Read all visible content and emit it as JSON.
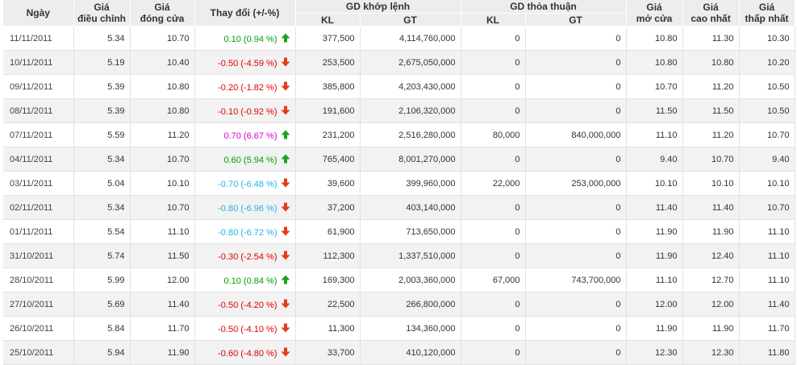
{
  "colors": {
    "up": "#00a000",
    "down": "#e00000",
    "ceiling": "#d600d6",
    "floor": "#22b4e8",
    "header_bg": "#ededed",
    "alt_row_bg": "#f2f2f2"
  },
  "headers": {
    "date": "Ngày",
    "adj_price": [
      "Giá",
      "điều chỉnh"
    ],
    "close_price": [
      "Giá",
      "đóng cửa"
    ],
    "change": "Thay đổi (+/-%)",
    "matched": "GD khớp lệnh",
    "negotiated": "GD thỏa thuận",
    "vol": "KL",
    "val": "GT",
    "open_price": [
      "Giá",
      "mở cửa"
    ],
    "high_price": [
      "Giá",
      "cao nhất"
    ],
    "low_price": [
      "Giá",
      "thấp nhất"
    ]
  },
  "rows": [
    {
      "date": "11/11/2011",
      "adj": "5.34",
      "close": "10.70",
      "change": "0.10 (0.94 %)",
      "dir": "up",
      "tone": "up",
      "m_kl": "377,500",
      "m_gt": "4,114,760,000",
      "n_kl": "0",
      "n_gt": "0",
      "open": "10.80",
      "high": "11.30",
      "low": "10.30"
    },
    {
      "date": "10/11/2011",
      "adj": "5.19",
      "close": "10.40",
      "change": "-0.50 (-4.59 %)",
      "dir": "down",
      "tone": "down",
      "m_kl": "253,500",
      "m_gt": "2,675,050,000",
      "n_kl": "0",
      "n_gt": "0",
      "open": "10.80",
      "high": "10.80",
      "low": "10.20"
    },
    {
      "date": "09/11/2011",
      "adj": "5.39",
      "close": "10.80",
      "change": "-0.20 (-1.82 %)",
      "dir": "down",
      "tone": "down",
      "m_kl": "385,800",
      "m_gt": "4,203,430,000",
      "n_kl": "0",
      "n_gt": "0",
      "open": "10.70",
      "high": "11.20",
      "low": "10.50"
    },
    {
      "date": "08/11/2011",
      "adj": "5.39",
      "close": "10.80",
      "change": "-0.10 (-0.92 %)",
      "dir": "down",
      "tone": "down",
      "m_kl": "191,600",
      "m_gt": "2,106,320,000",
      "n_kl": "0",
      "n_gt": "0",
      "open": "11.50",
      "high": "11.50",
      "low": "10.50"
    },
    {
      "date": "07/11/2011",
      "adj": "5.59",
      "close": "11.20",
      "change": "0.70 (6.67 %)",
      "dir": "up",
      "tone": "ceil",
      "m_kl": "231,200",
      "m_gt": "2,516,280,000",
      "n_kl": "80,000",
      "n_gt": "840,000,000",
      "open": "11.10",
      "high": "11.20",
      "low": "10.70"
    },
    {
      "date": "04/11/2011",
      "adj": "5.34",
      "close": "10.70",
      "change": "0.60 (5.94 %)",
      "dir": "up",
      "tone": "up",
      "m_kl": "765,400",
      "m_gt": "8,001,270,000",
      "n_kl": "0",
      "n_gt": "0",
      "open": "9.40",
      "high": "10.70",
      "low": "9.40"
    },
    {
      "date": "03/11/2011",
      "adj": "5.04",
      "close": "10.10",
      "change": "-0.70 (-6.48 %)",
      "dir": "down",
      "tone": "floor",
      "m_kl": "39,600",
      "m_gt": "399,960,000",
      "n_kl": "22,000",
      "n_gt": "253,000,000",
      "open": "10.10",
      "high": "10.10",
      "low": "10.10"
    },
    {
      "date": "02/11/2011",
      "adj": "5.34",
      "close": "10.70",
      "change": "-0.80 (-6.96 %)",
      "dir": "down",
      "tone": "floor",
      "m_kl": "37,200",
      "m_gt": "403,140,000",
      "n_kl": "0",
      "n_gt": "0",
      "open": "11.40",
      "high": "11.40",
      "low": "10.70"
    },
    {
      "date": "01/11/2011",
      "adj": "5.54",
      "close": "11.10",
      "change": "-0.80 (-6.72 %)",
      "dir": "down",
      "tone": "floor",
      "m_kl": "61,900",
      "m_gt": "713,650,000",
      "n_kl": "0",
      "n_gt": "0",
      "open": "11.90",
      "high": "11.90",
      "low": "11.10"
    },
    {
      "date": "31/10/2011",
      "adj": "5.74",
      "close": "11.50",
      "change": "-0.30 (-2.54 %)",
      "dir": "down",
      "tone": "down",
      "m_kl": "112,300",
      "m_gt": "1,337,510,000",
      "n_kl": "0",
      "n_gt": "0",
      "open": "11.90",
      "high": "12.40",
      "low": "11.10"
    },
    {
      "date": "28/10/2011",
      "adj": "5.99",
      "close": "12.00",
      "change": "0.10 (0.84 %)",
      "dir": "up",
      "tone": "up",
      "m_kl": "169,300",
      "m_gt": "2,003,360,000",
      "n_kl": "67,000",
      "n_gt": "743,700,000",
      "open": "11.10",
      "high": "12.70",
      "low": "11.10"
    },
    {
      "date": "27/10/2011",
      "adj": "5.69",
      "close": "11.40",
      "change": "-0.50 (-4.20 %)",
      "dir": "down",
      "tone": "down",
      "m_kl": "22,500",
      "m_gt": "266,800,000",
      "n_kl": "0",
      "n_gt": "0",
      "open": "12.00",
      "high": "12.00",
      "low": "11.40"
    },
    {
      "date": "26/10/2011",
      "adj": "5.84",
      "close": "11.70",
      "change": "-0.50 (-4.10 %)",
      "dir": "down",
      "tone": "down",
      "m_kl": "11,300",
      "m_gt": "134,360,000",
      "n_kl": "0",
      "n_gt": "0",
      "open": "11.90",
      "high": "11.90",
      "low": "11.70"
    },
    {
      "date": "25/10/2011",
      "adj": "5.94",
      "close": "11.90",
      "change": "-0.60 (-4.80 %)",
      "dir": "down",
      "tone": "down",
      "m_kl": "33,700",
      "m_gt": "410,120,000",
      "n_kl": "0",
      "n_gt": "0",
      "open": "12.30",
      "high": "12.30",
      "low": "11.80"
    }
  ]
}
